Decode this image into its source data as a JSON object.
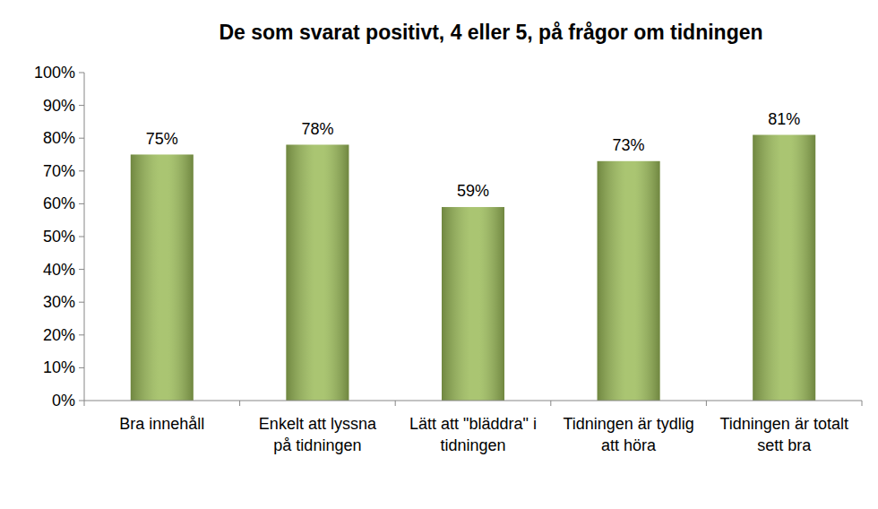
{
  "chart_data": {
    "type": "bar",
    "title": "De som svarat positivt, 4 eller 5, på frågor om tidningen",
    "categories": [
      "Bra innehåll",
      "Enkelt att lyssna på tidningen",
      "Lätt att \"bläddra\" i tidningen",
      "Tidningen är tydlig att höra",
      "Tidningen är totalt sett bra"
    ],
    "values": [
      75,
      78,
      59,
      73,
      81
    ],
    "value_labels": [
      "75%",
      "78%",
      "59%",
      "73%",
      "81%"
    ],
    "data_labels": true,
    "color": "#9bbb59",
    "grid": false,
    "ylim": [
      0,
      100
    ],
    "yticks": [
      {
        "value": 0,
        "label": "0%"
      },
      {
        "value": 10,
        "label": "10%"
      },
      {
        "value": 20,
        "label": "20%"
      },
      {
        "value": 30,
        "label": "30%"
      },
      {
        "value": 40,
        "label": "40%"
      },
      {
        "value": 50,
        "label": "50%"
      },
      {
        "value": 60,
        "label": "60%"
      },
      {
        "value": 70,
        "label": "70%"
      },
      {
        "value": 80,
        "label": "80%"
      },
      {
        "value": 90,
        "label": "90%"
      },
      {
        "value": 100,
        "label": "100%"
      }
    ]
  }
}
